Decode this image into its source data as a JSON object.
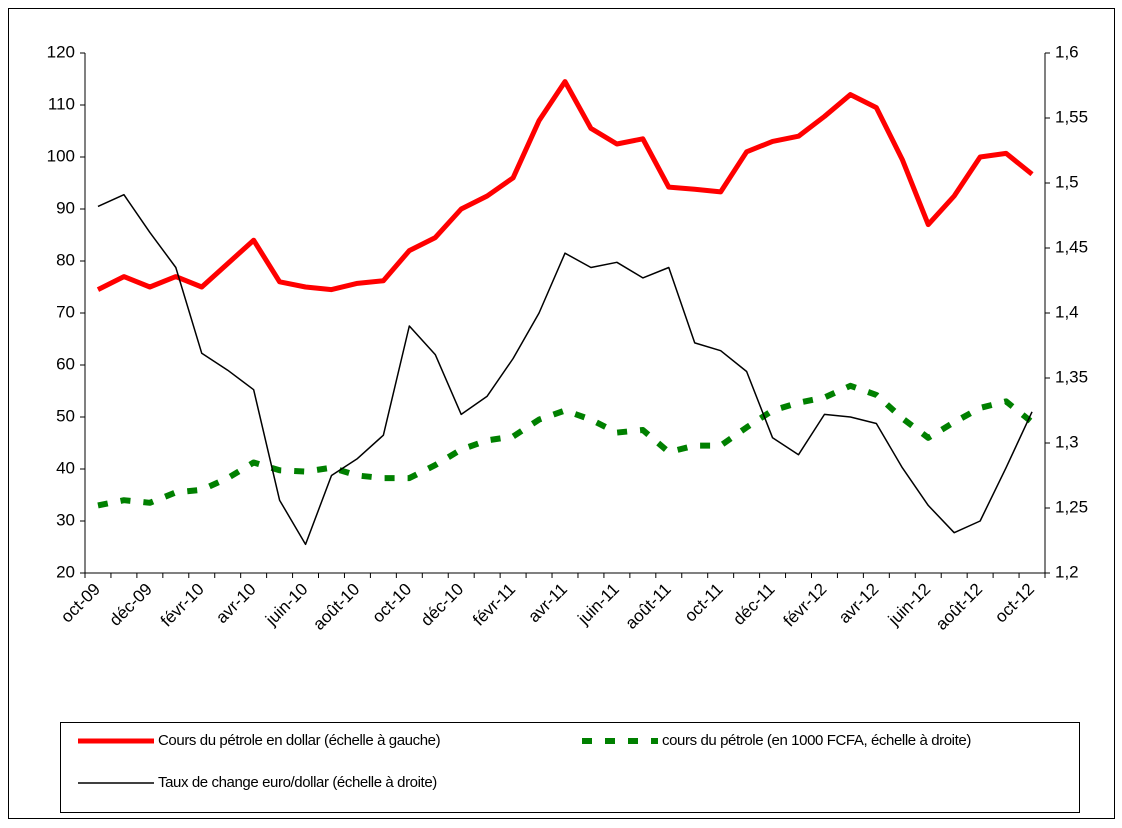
{
  "chart_data": {
    "type": "line",
    "categories": [
      "oct-09",
      null,
      "déc-09",
      null,
      "févr-10",
      null,
      "avr-10",
      null,
      "juin-10",
      null,
      "août-10",
      null,
      "oct-10",
      null,
      "déc-10",
      null,
      "févr-11",
      null,
      "avr-11",
      null,
      "juin-11",
      null,
      "août-11",
      null,
      "oct-11",
      null,
      "déc-11",
      null,
      "févr-12",
      null,
      "avr-12",
      null,
      "juin-12",
      null,
      "août-12",
      null,
      "oct-12"
    ],
    "ylim": [
      20,
      120
    ],
    "yticks": [
      20,
      30,
      40,
      50,
      60,
      70,
      80,
      90,
      100,
      110,
      120
    ],
    "y2lim": [
      1.2,
      1.6
    ],
    "y2ticks": [
      {
        "value": 1.2,
        "label": "1,2"
      },
      {
        "value": 1.25,
        "label": "1,25"
      },
      {
        "value": 1.3,
        "label": "1,3"
      },
      {
        "value": 1.35,
        "label": "1,35"
      },
      {
        "value": 1.4,
        "label": "1,4"
      },
      {
        "value": 1.45,
        "label": "1,45"
      },
      {
        "value": 1.5,
        "label": "1,5"
      },
      {
        "value": 1.55,
        "label": "1,55"
      },
      {
        "value": 1.6,
        "label": "1,6"
      }
    ],
    "series": [
      {
        "name": "Cours du pétrole en dollar (échelle à gauche)",
        "color": "#ff0000",
        "axis": "y",
        "values": [
          74.5,
          77,
          75,
          77,
          75,
          79.5,
          84,
          76,
          75,
          74.5,
          75.7,
          76.2,
          82,
          84.5,
          90,
          92.5,
          96,
          107,
          114.5,
          105.5,
          102.5,
          103.5,
          94.2,
          93.8,
          93.3,
          101,
          103,
          104,
          107.8,
          112,
          109.5,
          99.5,
          87,
          92.5,
          100,
          100.7,
          96.7
        ]
      },
      {
        "name": "cours du pétrole (en 1000 FCFA, échelle à droite)",
        "color": "#008000",
        "axis": "y2",
        "dashed": true,
        "values": [
          1.252,
          1.256,
          1.254,
          1.262,
          1.264,
          1.273,
          1.285,
          1.279,
          1.278,
          1.281,
          1.275,
          1.273,
          1.273,
          1.283,
          1.295,
          1.302,
          1.305,
          1.318,
          1.325,
          1.318,
          1.308,
          1.31,
          1.293,
          1.298,
          1.298,
          1.312,
          1.325,
          1.331,
          1.335,
          1.344,
          1.337,
          1.319,
          1.304,
          1.316,
          1.327,
          1.332,
          1.316
        ]
      },
      {
        "name": "Taux de change euro/dollar (échelle à droite)",
        "color": "#000000",
        "axis": "y2",
        "values": [
          1.482,
          1.491,
          1.462,
          1.435,
          1.369,
          1.356,
          1.341,
          1.256,
          1.222,
          1.275,
          1.288,
          1.306,
          1.39,
          1.368,
          1.322,
          1.336,
          1.365,
          1.4,
          1.446,
          1.435,
          1.439,
          1.427,
          1.435,
          1.377,
          1.371,
          1.355,
          1.304,
          1.291,
          1.322,
          1.32,
          1.315,
          1.281,
          1.252,
          1.231,
          1.24,
          1.281,
          1.324
        ]
      }
    ]
  }
}
